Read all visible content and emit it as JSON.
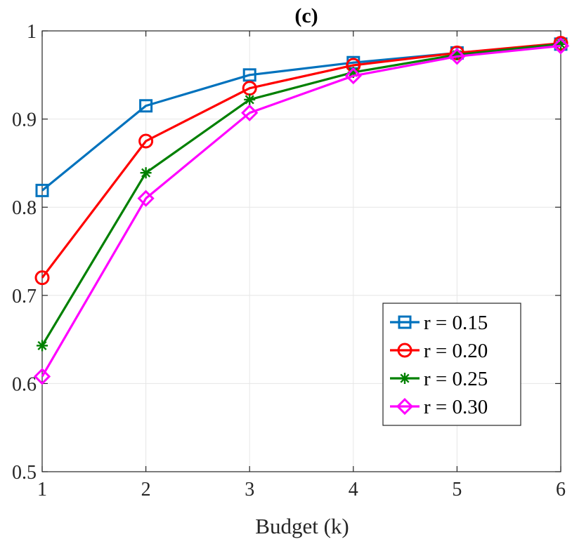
{
  "chart_data": {
    "type": "line",
    "title": "(c)",
    "xlabel": "Budget (k)",
    "ylabel": "",
    "x": [
      1,
      2,
      3,
      4,
      5,
      6
    ],
    "xlim": [
      1,
      6
    ],
    "ylim": [
      0.5,
      1
    ],
    "xticks": [
      "1",
      "2",
      "3",
      "4",
      "5",
      "6"
    ],
    "yticks": [
      "0.5",
      "0.6",
      "0.7",
      "0.8",
      "0.9",
      "1"
    ],
    "grid": true,
    "legend_position": "bottom-right",
    "series": [
      {
        "name": "r = 0.15",
        "color": "#0072BD",
        "marker": "square",
        "values": [
          0.819,
          0.915,
          0.95,
          0.964,
          0.975,
          0.985
        ]
      },
      {
        "name": "r = 0.20",
        "color": "#FF0000",
        "marker": "circle",
        "values": [
          0.72,
          0.875,
          0.935,
          0.961,
          0.975,
          0.986
        ]
      },
      {
        "name": "r = 0.25",
        "color": "#008000",
        "marker": "asterisk",
        "values": [
          0.643,
          0.839,
          0.922,
          0.953,
          0.973,
          0.985
        ]
      },
      {
        "name": "r = 0.30",
        "color": "#FF00FF",
        "marker": "diamond",
        "values": [
          0.608,
          0.81,
          0.907,
          0.949,
          0.971,
          0.983
        ]
      }
    ]
  }
}
